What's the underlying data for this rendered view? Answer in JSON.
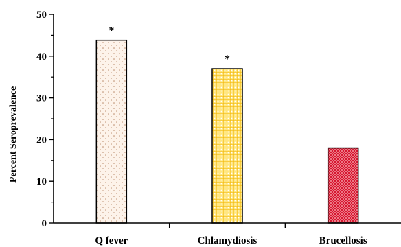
{
  "chart_data": {
    "type": "bar",
    "title": "",
    "xlabel": "",
    "ylabel": "Percent Seroprevalence",
    "ylim": [
      0,
      50
    ],
    "yticks": [
      0,
      10,
      20,
      30,
      40,
      50
    ],
    "categories": [
      "Q fever",
      "Chlamydiosis",
      "Brucellosis"
    ],
    "values": [
      43.8,
      37.0,
      18.0
    ],
    "annotations": [
      "*",
      "*",
      ""
    ],
    "bar_colors": [
      "#fdf3ea",
      "#ffd966",
      "#e8192c"
    ],
    "bar_patterns": [
      "sparse-dots",
      "yellow-grid",
      "red-crosshatch"
    ],
    "grid": false,
    "legend": "none"
  }
}
